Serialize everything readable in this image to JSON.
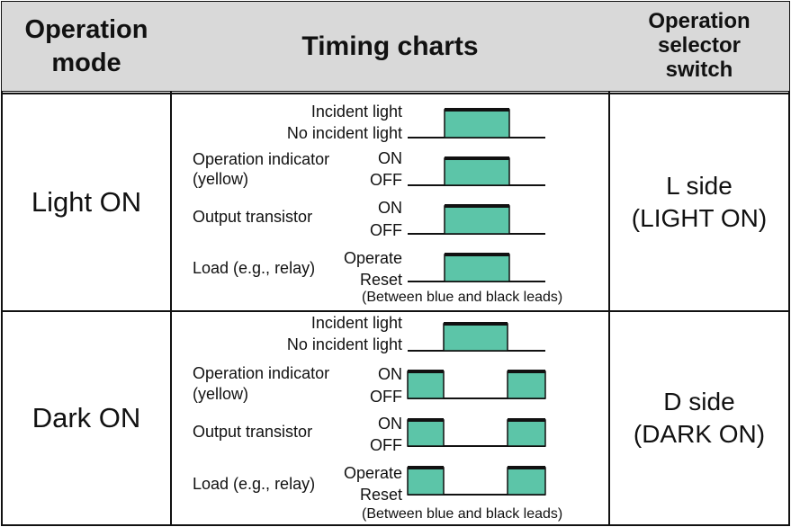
{
  "table": {
    "headers": {
      "mode": "Operation mode",
      "timing": "Timing charts",
      "switch": "Operation selector switch"
    },
    "rows": [
      {
        "mode": "Light ON",
        "switch_line1": "L side",
        "switch_line2": "(LIGHT ON)",
        "signals": [
          {
            "label": "",
            "high": "Incident light",
            "low": "No incident light"
          },
          {
            "label": "Operation indicator",
            "label2": "(yellow)",
            "high": "ON",
            "low": "OFF"
          },
          {
            "label": "Output transistor",
            "high": "ON",
            "low": "OFF"
          },
          {
            "label": "Load (e.g., relay)",
            "high": "Operate",
            "low": "Reset"
          }
        ],
        "note": "(Between blue and black leads)"
      },
      {
        "mode": "Dark ON",
        "switch_line1": "D side",
        "switch_line2": "(DARK ON)",
        "signals": [
          {
            "label": "",
            "high": "Incident light",
            "low": "No incident light"
          },
          {
            "label": "Operation indicator",
            "label2": "(yellow)",
            "high": "ON",
            "low": "OFF"
          },
          {
            "label": "Output transistor",
            "high": "ON",
            "low": "OFF"
          },
          {
            "label": "Load (e.g., relay)",
            "high": "Operate",
            "low": "Reset"
          }
        ],
        "note": "(Between blue and black leads)"
      }
    ]
  },
  "colors": {
    "pulse_fill": "#5cc5a8",
    "header_bg": "#d9d9d9",
    "line": "#111111"
  }
}
